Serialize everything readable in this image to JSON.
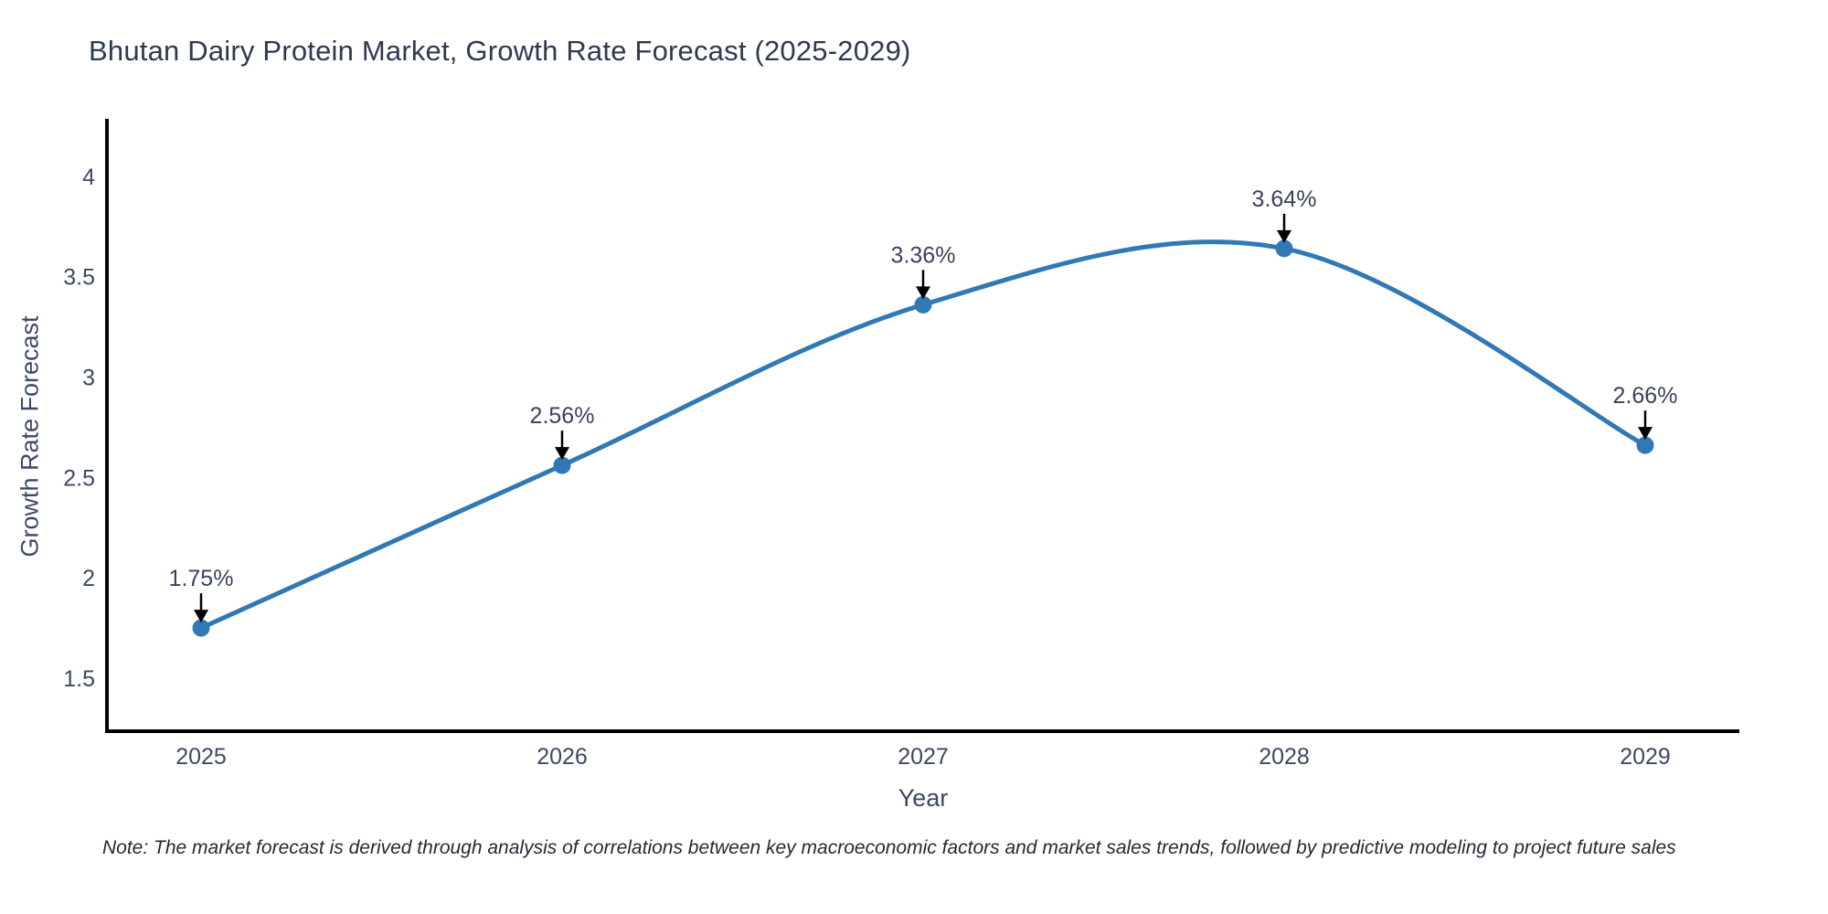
{
  "title": "Bhutan Dairy Protein Market, Growth Rate Forecast (2025-2029)",
  "note": "Note: The market forecast is derived through analysis of correlations between key macroeconomic factors and market sales trends, followed by predictive modeling to project future sales",
  "chart_data": {
    "type": "line",
    "line_shape": "spline",
    "title": "Bhutan Dairy Protein Market, Growth Rate Forecast (2025-2029)",
    "x": [
      "2025",
      "2026",
      "2027",
      "2028",
      "2029"
    ],
    "y": [
      1.75,
      2.56,
      3.36,
      3.64,
      2.66
    ],
    "point_labels": [
      "1.75%",
      "2.56%",
      "3.36%",
      "3.64%",
      "2.66%"
    ],
    "xlabel": "Year",
    "ylabel": "Growth Rate Forecast",
    "yticks": [
      1.5,
      2,
      2.5,
      3,
      3.5,
      4
    ],
    "ylim": [
      1.236,
      4.286
    ],
    "grid": false,
    "legend": "none",
    "colors": {
      "line": "#3179b5",
      "marker": "#3179b5",
      "axis": "#000000",
      "arrow": "#000000",
      "tick_text": "#3d4961",
      "title_text": "#2e3a52",
      "annotation_text": "#39425a",
      "background": "#ffffff"
    }
  }
}
